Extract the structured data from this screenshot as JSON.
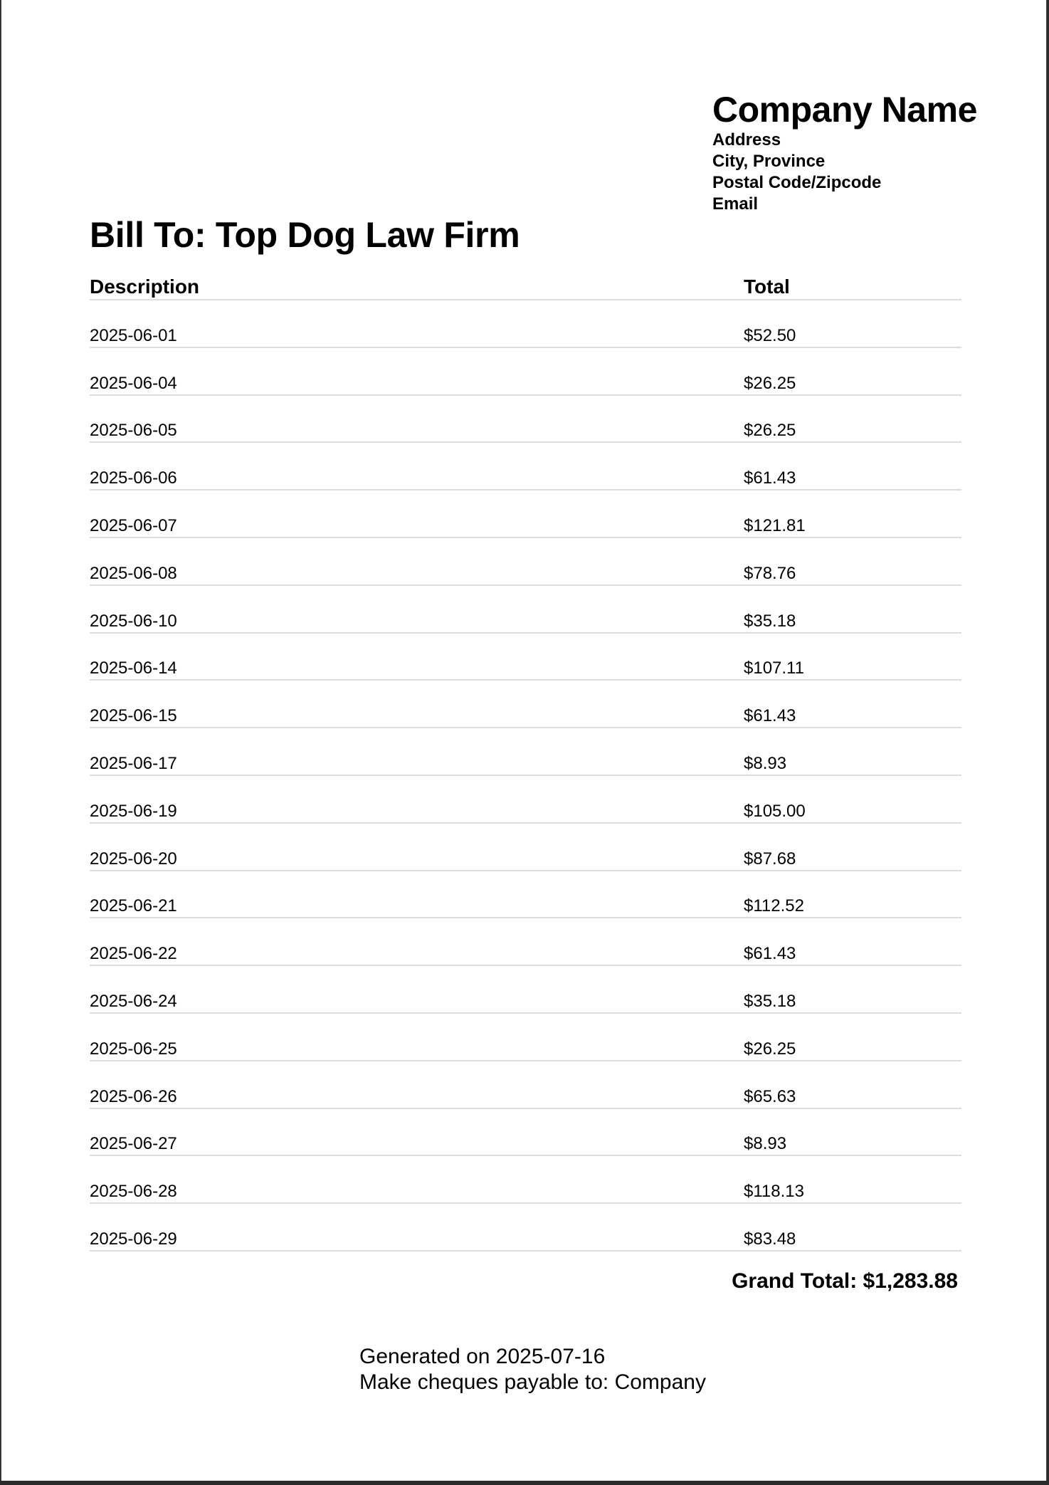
{
  "company": {
    "name": "Company Name",
    "address": "Address",
    "city_province": "City, Province",
    "postal_code": "Postal Code/Zipcode",
    "email": "Email"
  },
  "bill_to": "Bill To: Top Dog Law Firm",
  "table": {
    "headers": {
      "description": "Description",
      "total": "Total"
    },
    "rows": [
      {
        "description": "2025-06-01",
        "total": "$52.50"
      },
      {
        "description": "2025-06-04",
        "total": "$26.25"
      },
      {
        "description": "2025-06-05",
        "total": "$26.25"
      },
      {
        "description": "2025-06-06",
        "total": "$61.43"
      },
      {
        "description": "2025-06-07",
        "total": "$121.81"
      },
      {
        "description": "2025-06-08",
        "total": "$78.76"
      },
      {
        "description": "2025-06-10",
        "total": "$35.18"
      },
      {
        "description": "2025-06-14",
        "total": "$107.11"
      },
      {
        "description": "2025-06-15",
        "total": "$61.43"
      },
      {
        "description": "2025-06-17",
        "total": "$8.93"
      },
      {
        "description": "2025-06-19",
        "total": "$105.00"
      },
      {
        "description": "2025-06-20",
        "total": "$87.68"
      },
      {
        "description": "2025-06-21",
        "total": "$112.52"
      },
      {
        "description": "2025-06-22",
        "total": "$61.43"
      },
      {
        "description": "2025-06-24",
        "total": "$35.18"
      },
      {
        "description": "2025-06-25",
        "total": "$26.25"
      },
      {
        "description": "2025-06-26",
        "total": "$65.63"
      },
      {
        "description": "2025-06-27",
        "total": "$8.93"
      },
      {
        "description": "2025-06-28",
        "total": "$118.13"
      },
      {
        "description": "2025-06-29",
        "total": "$83.48"
      }
    ]
  },
  "grand_total": "Grand Total: $1,283.88",
  "footer": {
    "generated": "Generated on 2025-07-16",
    "payable": "Make cheques payable to: Company"
  }
}
